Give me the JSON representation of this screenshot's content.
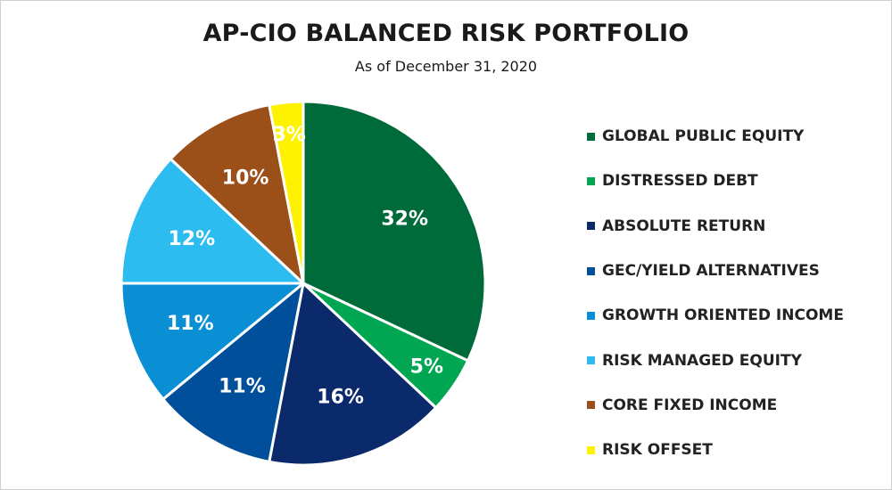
{
  "header": {
    "title": "AP-CIO BALANCED RISK PORTFOLIO",
    "subtitle": "As of December 31, 2020"
  },
  "chart_data": {
    "type": "pie",
    "title": "AP-CIO BALANCED RISK PORTFOLIO",
    "subtitle": "As of December 31, 2020",
    "legend_position": "right",
    "slice_border_color": "#ffffff",
    "slices": [
      {
        "label": "GLOBAL PUBLIC EQUITY",
        "value": 32,
        "display": "32%",
        "color": "#006b3a"
      },
      {
        "label": "DISTRESSED DEBT",
        "value": 5,
        "display": "5%",
        "color": "#00a651"
      },
      {
        "label": "ABSOLUTE RETURN",
        "value": 16,
        "display": "16%",
        "color": "#0b2a6b"
      },
      {
        "label": "GEC/YIELD ALTERNATIVES",
        "value": 11,
        "display": "11%",
        "color": "#004f9a"
      },
      {
        "label": "GROWTH ORIENTED INCOME",
        "value": 11,
        "display": "11%",
        "color": "#0a8ed4"
      },
      {
        "label": "RISK MANAGED EQUITY",
        "value": 12,
        "display": "12%",
        "color": "#2dbcef"
      },
      {
        "label": "CORE FIXED INCOME",
        "value": 10,
        "display": "10%",
        "color": "#9b4f19"
      },
      {
        "label": "RISK OFFSET",
        "value": 3,
        "display": "3%",
        "color": "#fff200"
      }
    ]
  }
}
